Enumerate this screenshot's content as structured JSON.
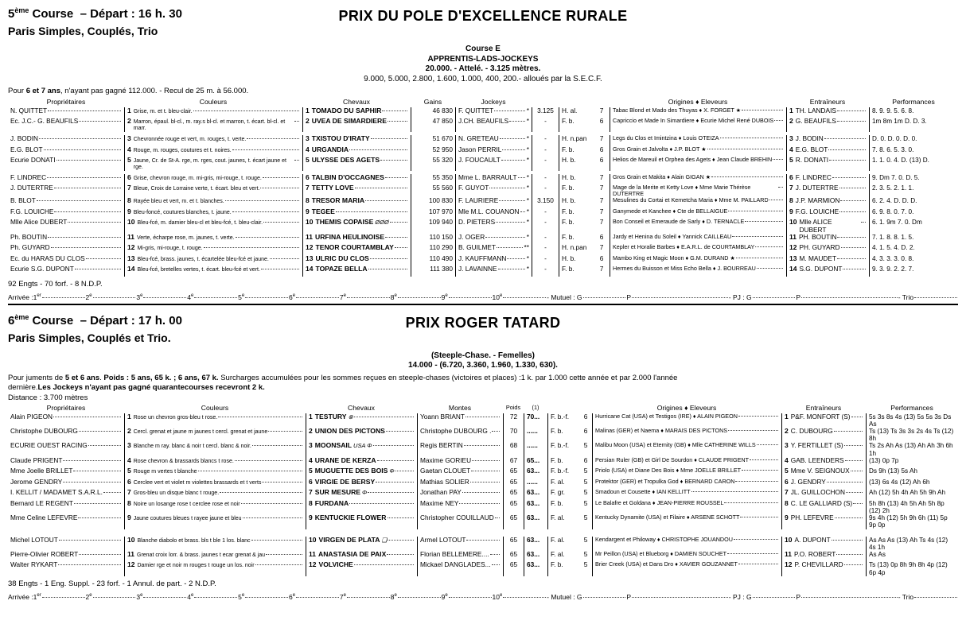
{
  "shared": {
    "arrivee": {
      "label": "Arrivée :",
      "positions": [
        {
          "num": "1",
          "suffix": "er"
        },
        {
          "num": "2",
          "suffix": "e"
        },
        {
          "num": "3",
          "suffix": "e"
        },
        {
          "num": "4",
          "suffix": "e"
        },
        {
          "num": "5",
          "suffix": "e"
        },
        {
          "num": "6",
          "suffix": "e"
        },
        {
          "num": "7",
          "suffix": "e"
        },
        {
          "num": "8",
          "suffix": "e"
        },
        {
          "num": "9",
          "suffix": "e"
        },
        {
          "num": "10",
          "suffix": "e"
        }
      ],
      "mutuel_label": "- Mutuel : G",
      "place_label": "P",
      "pj_label": "- PJ : G",
      "place2_label": "P",
      "trio_label": "- Trio"
    }
  },
  "races": [
    {
      "num": "5",
      "num_sup": "ème",
      "course_word": "Course",
      "depart": "– Départ : 16 h. 30",
      "bets": "Paris Simples, Couplés, Trio",
      "title": "PRIX DU POLE D'EXCELLENCE RURALE",
      "sublines": [
        {
          "t": "Course E",
          "b": 1
        },
        {
          "t": "APPRENTIS-LADS-JOCKEYS",
          "b": 1
        },
        {
          "t": "20.000. - Attelé. - 3.125 mètres.",
          "b": 1
        },
        {
          "t": "9.000, 5.000, 2.800, 1.600, 1.000, 400, 200.- alloués par la S.E.C.F.",
          "b": 0
        }
      ],
      "conditions": [
        [
          {
            "t": "Pour ",
            "b": 0
          },
          {
            "t": "6 et 7 ans",
            "b": 1
          },
          {
            "t": ", n'ayant pas gagné 112.000. - Recul de 25 m. à 56.000.",
            "b": 0
          }
        ]
      ],
      "distance_line": "",
      "headers": [
        "Propriétaires",
        "Couleurs",
        "Chevaux",
        "Gains",
        "Jockeys",
        "",
        "",
        "",
        "Origines ♦ Eleveurs",
        "Entraîneurs",
        "Performances"
      ],
      "rows": [
        {
          "num": "1",
          "owner": "N. QUITTET",
          "colors": "Grise, m. et t. bleu-clair.",
          "horse": "TOMADO DU SAPHIR",
          "mark": "",
          "gains": "46 830",
          "jockey": "F. QUITTET",
          "jmark": "*",
          "dist": "3.125",
          "sex": "H. al.",
          "age": "7",
          "origins": "Tabac Blond et Mado des Thuyas ♦ X. FORGET ★",
          "trainer": "TH. LANDAIS",
          "perf": "8. 9. 9. 5. 6. 8."
        },
        {
          "num": "2",
          "owner": "Ec. J.C.- G. BEAUFILS",
          "colors": "Marron, épaul. bl-cl., m. ray.s bl-cl. et marron, t. écart. bl-cl. et marr.",
          "horse": "UVEA DE SIMARDIERE",
          "mark": "",
          "gains": "47 850",
          "jockey": "J.CH. BEAUFILS",
          "jmark": "*",
          "dist": "-",
          "sex": "F. b.",
          "age": "6",
          "origins": "Capriccio et Made In Simardiere ♦ Ecurie Michel René DUBOIS",
          "trainer": "G. BEAUFILS",
          "perf": "1m 8m 1m D. D. 3."
        },
        {
          "num": "3",
          "gap": true,
          "owner": "J. BODIN",
          "colors": "Chevronnée rouge et vert, m. rouges, t. verte.",
          "horse": "TXISTOU D'IRATY",
          "mark": "",
          "gains": "51 670",
          "jockey": "N. GRETEAU",
          "jmark": "*",
          "dist": "-",
          "sex": "H. n.pan",
          "age": "7",
          "origins": "Legs du Clos et Imintzina ♦ Louis OTEIZA",
          "trainer": "J. BODIN",
          "perf": "D. 0. D. 0. D. 0."
        },
        {
          "num": "4",
          "owner": "E.G. BLOT",
          "colors": "Rouge, m. rouges, coutures et t. noires.",
          "horse": "URGANDIA",
          "mark": "",
          "gains": "52 950",
          "jockey": "Jason PERRIL",
          "jmark": "*",
          "dist": "-",
          "sex": "F. b.",
          "age": "6",
          "origins": "Gros Grain et Jalvolta ♦ J.P. BLOT ★",
          "trainer": "E.G. BLOT",
          "perf": "7. 8. 6. 5. 3. 0."
        },
        {
          "num": "5",
          "owner": "Ecurie DONATI",
          "colors": "Jaune, Cr. de St-A. rge, m. rges, cout. jaunes, t. écart jaune et rge.",
          "horse": "ULYSSE DES AGETS",
          "mark": "",
          "gains": "55 320",
          "jockey": "J. FOUCAULT",
          "jmark": "*",
          "dist": "-",
          "sex": "H. b.",
          "age": "6",
          "origins": "Helios de Mareuil et Orphea des Agets ♦ Jean Claude BREHIN",
          "trainer": "R. DONATI",
          "perf": "1. 1. 0. 4. D. (13) D."
        },
        {
          "num": "6",
          "gap": true,
          "owner": "F. LINDREC",
          "colors": "Grise, chevron rouge, m. mi-gris, mi-rouge, t. rouge.",
          "horse": "TALBIN D'OCCAGNES",
          "mark": "",
          "gains": "55 350",
          "jockey": "Mme L. BARRAULT",
          "jmark": "*",
          "dist": "-",
          "sex": "H. b.",
          "age": "7",
          "origins": "Gros Grain et Makita ♦ Alain GIGAN ★",
          "trainer": "F. LINDREC",
          "perf": "9. Dm 7. 0. D. 5."
        },
        {
          "num": "7",
          "owner": "J. DUTERTRE",
          "colors": "Bleue, Croix de Lorraine verte, t. écart. bleu et vert.",
          "horse": "TETTY LOVE",
          "mark": "",
          "gains": "55 560",
          "jockey": "F. GUYOT",
          "jmark": "*",
          "dist": "-",
          "sex": "F. b.",
          "age": "7",
          "origins": "Mage de la Merite et Ketty Love ♦ Mme Marie Thérèse DUTERTRE",
          "trainer": "J. DUTERTRE",
          "perf": "2. 3. 5. 2. 1. 1."
        },
        {
          "num": "8",
          "owner": "B. BLOT",
          "colors": "Rayée bleu et vert, m. et t. blanches.",
          "horse": "TRESOR MARIA",
          "mark": "",
          "gains": "100 830",
          "jockey": "F. LAURIERE",
          "jmark": "*",
          "dist": "3.150",
          "sex": "H. b.",
          "age": "7",
          "origins": "Mesulines du Cortai et Kemetcha Maria ♦ Mme M. PAILLARD",
          "trainer": "J.P. MARMION",
          "perf": "6. 2. 4. D. D. D."
        },
        {
          "num": "9",
          "owner": "F.G. LOUICHE",
          "colors": "Bleu-foncé, coutures blanches, t. jaune.",
          "horse": "TEGEE",
          "mark": "",
          "gains": "107 970",
          "jockey": "Mle M.L. COUANON",
          "jmark": "*",
          "dist": "-",
          "sex": "F. b.",
          "age": "7",
          "origins": "Ganymede et Kanchee ♦ Cte de BELLAIGUE",
          "trainer": "F.G. LOUICHE",
          "perf": "6. 9. 8. 0. 7. 0."
        },
        {
          "num": "10",
          "owner": "Mlle Alice DUBERT",
          "colors": "Bleu-fcé, m. damier bleu-cl et bleu-fcé, t. bleu-clair.",
          "horse": "THEMIS COPAISE",
          "mark": "ØØØ",
          "gains": "109 940",
          "jockey": "D. PIETERS",
          "jmark": "*",
          "dist": "-",
          "sex": "F. b.",
          "age": "7",
          "origins": "Bon Conseil et Emeraude de Sarly ♦ D. TERNACLE",
          "trainer": "Mlle ALICE DUBERT",
          "perf": "6. 1. 9m 7. 0. Dm"
        },
        {
          "num": "11",
          "owner": "Ph. BOUTIN",
          "colors": "Verte, écharpe rose, m. jaunes, t. verte.",
          "horse": "URFINA HEULINOISE",
          "mark": "",
          "gains": "110 150",
          "jockey": "J. OGER",
          "jmark": "*",
          "dist": "-",
          "sex": "F. b.",
          "age": "6",
          "origins": "Jardy et Henina du Soleil ♦ Yannick CAILLEAU",
          "trainer": "PH. BOUTIN",
          "perf": "7. 1. 8. 8. 1. 5."
        },
        {
          "num": "12",
          "owner": "Ph. GUYARD",
          "colors": "Mi-gris, mi-rouge, t. rouge.",
          "horse": "TENOR COURTAMBLAY",
          "mark": "",
          "gains": "110 290",
          "jockey": "B. GUILMET",
          "jmark": "**",
          "dist": "-",
          "sex": "H. n.pan",
          "age": "7",
          "origins": "Kepler et Horalie Barbes ♦ E.A.R.L. de COURTAMBLAY",
          "trainer": "PH. GUYARD",
          "perf": "4. 1. 5. 4. D. 2."
        },
        {
          "num": "13",
          "owner": "Ec. du HARAS DU CLOS",
          "colors": "Bleu-fcé, brass. jaunes, t. écartelée bleu-fcé et jaune.",
          "horse": "ULRIC DU CLOS",
          "mark": "",
          "gains": "110 490",
          "jockey": "J. KAUFFMANN",
          "jmark": "*",
          "dist": "-",
          "sex": "H. b.",
          "age": "6",
          "origins": "Mambo King et Magic Moon ♦ G.M. DURAND ★",
          "trainer": "M. MAUDET",
          "perf": "4. 3. 3. 3. 0. 8."
        },
        {
          "num": "14",
          "owner": "Ecurie S.G. DUPONT",
          "colors": "Bleu-fcé, bretelles vertes, t. écart. bleu-fcé et vert.",
          "horse": "TOPAZE BELLA",
          "mark": "",
          "gains": "111 380",
          "jockey": "J. LAVAINNE",
          "jmark": "*",
          "dist": "-",
          "sex": "F. b.",
          "age": "7",
          "origins": "Hermes du Buisson et Miss Echo Bella ♦ J. BOURREAU",
          "trainer": "S.G. DUPONT",
          "perf": "9. 3. 9. 2. 2. 7."
        }
      ],
      "footer": "92 Engts - 70 forf. - 8 N.D.P."
    },
    {
      "num": "6",
      "num_sup": "ème",
      "course_word": "Course",
      "depart": "– Départ : 17 h. 00",
      "bets": "Paris Simples, Couplés et Trio.",
      "title": "PRIX ROGER TATARD",
      "sublines": [
        {
          "t": "(Steeple-Chase. - Femelles)",
          "b": 1
        },
        {
          "t": "14.000 - (6.720, 3.360, 1.960, 1.330, 630).",
          "b": 1
        }
      ],
      "conditions": [
        [
          {
            "t": "Pour juments de ",
            "b": 0
          },
          {
            "t": "5 et 6 ans",
            "b": 1
          },
          {
            "t": ". ",
            "b": 0
          },
          {
            "t": "Poids : 5 ans, 65 k. ; 6 ans, 67 k.",
            "b": 1
          },
          {
            "t": " Surcharges accumulées pour les sommes reçues en steeple-chases (victoires et places) :1 k. par 1.000 cette année et par 2.000 l'année",
            "b": 0
          }
        ],
        [
          {
            "t": "dernière.",
            "b": 0
          },
          {
            "t": "Les Jockeys n'ayant pas gagné quarantecourses recevront 2 k.",
            "b": 1
          }
        ]
      ],
      "distance_line": "Distance : 3.700 mètres",
      "headers": [
        "Propriétaires",
        "Couleurs",
        "Chevaux",
        "Montes",
        "Poids",
        "(1)",
        "",
        "",
        "Origines ♦ Eleveurs",
        "Entraîneurs",
        "Performances"
      ],
      "rows": [
        {
          "num": "1",
          "owner": "Alain PIGEON",
          "colors": "Rose un chevron gros-bleu t rose.",
          "horse": "TESTURY",
          "mark": "⊗",
          "monte": "Yoann BRIANT",
          "poids": "72",
          "poids2": "70...",
          "sex": "F. b.-f.",
          "age": "6",
          "origins": "Hurricane Cat (USA) et Testigos (IRE) ♦ ALAIN PIGEON",
          "trainer": "P&F. MONFORT (S)",
          "perf": "5s 3s 8s 4s (13) 5s 5s 3s Ds As"
        },
        {
          "num": "2",
          "owner": "Christophe DUBOURG",
          "colors": "Cercl. grenat et jaune m jaunes t cercl. grenat et jaune",
          "horse": "UNION DES PICTONS",
          "mark": "",
          "monte": "Christophe DUBOURG .",
          "poids": "70",
          "poids2": "......",
          "sex": "F. b.",
          "age": "6",
          "origins": "Malinas (GER) et Naema ♦ MARAIS DES PICTONS",
          "trainer": "C. DUBOURG",
          "perf": "Ts (13) Ts 3s 3s 2s 4s Ts (12) 8h"
        },
        {
          "num": "3",
          "owner": "ECURIE OUEST RACING",
          "colors": "Blanche m ray. blanc & noir t cercl. blanc & noir.",
          "horse": "MOONSAIL",
          "mark": "USA Φ",
          "monte": "Regis BERTIN",
          "poids": "68",
          "poids2": "......",
          "sex": "F. b.-f.",
          "age": "5",
          "origins": "Malibu Moon (USA) et Eternity (GB) ♦ Mlle CATHERINE WILLS",
          "trainer": "Y. FERTILLET (S)",
          "perf": "Ts 2s Ah As (13) Ah Ah 3h 6h 1h"
        },
        {
          "num": "4",
          "owner": "Claude PRIGENT",
          "colors": "Rose chevron & brassards blancs t rose.",
          "horse": "URANE DE KERZA",
          "mark": "",
          "monte": "Maxime GORIEU",
          "poids": "67",
          "poids2": "65...",
          "sex": "F. b.",
          "age": "6",
          "origins": "Persian Ruler (GB) et Girl De Sourdon ♦ CLAUDE PRIGENT",
          "trainer": "GAB. LEENDERS",
          "perf": "(13) 0p 7p"
        },
        {
          "num": "5",
          "owner": "Mme Joelle BRILLET",
          "colors": "Rouge m vertes t blanche",
          "horse": "MUGUETTE DES BOIS",
          "mark": "Φ",
          "monte": "Gaetan CLOUET",
          "poids": "65",
          "poids2": "63...",
          "sex": "F. b.-f.",
          "age": "5",
          "origins": "Priolo (USA) et Diane Des Bois ♦ Mme JOELLE BRILLET",
          "trainer": "Mme V. SEIGNOUX",
          "perf": "Ds 9h (13) 5s Ah"
        },
        {
          "num": "6",
          "owner": "Jerome GENDRY",
          "colors": "Cerclee vert et violet m violettes brassards et t verts",
          "horse": "VIRGIE DE BERSY",
          "mark": "",
          "monte": "Mathias SOLIER",
          "poids": "65",
          "poids2": "......",
          "sex": "F. al.",
          "age": "5",
          "origins": "Protektor (GER) et Tropulka God ♦ BERNARD CARON",
          "trainer": "J. GENDRY",
          "perf": "(13) 6s 4s (12) Ah 6h"
        },
        {
          "num": "7",
          "owner": "I. KELLIT / MADAMET S.A.R.L.",
          "colors": "Gros-bleu un disque blanc t rouge.",
          "horse": "SUR MESURE",
          "mark": "Φ",
          "monte": "Jonathan PAY",
          "poids": "65",
          "poids2": "63...",
          "sex": "F. gr.",
          "age": "5",
          "origins": "Smadoun et Cousette ♦ IAN KELLITT",
          "trainer": "JL. GUILLOCHON",
          "perf": "Ah (12) 5h 4h Ah 5h 9h Ah"
        },
        {
          "num": "8",
          "owner": "Bernard LE REGENT",
          "colors": "Noire un losange rose t cerclee rose et noir",
          "horse": "FURDANA",
          "mark": "",
          "monte": "Maxime NEY",
          "poids": "65",
          "poids2": "63...",
          "sex": "F. b.",
          "age": "5",
          "origins": "Le Balafre et Goldana ♦ JEAN-PIERRE ROUSSEL",
          "trainer": "C. LE GALLIARD (S)",
          "perf": "5h 8h (13) 4h 5h Ah 5h 8p (12) 2h"
        },
        {
          "num": "9",
          "owner": "Mme Celine LEFEVRE",
          "colors": "Jaune coutures bleues t rayee jaune et bleu",
          "horse": "KENTUCKIE FLOWER",
          "mark": "",
          "monte": "Christopher COUILLAUD",
          "poids": "65",
          "poids2": "63...",
          "sex": "F. al.",
          "age": "5",
          "origins": "Kentucky Dynamite (USA) et Filaire ♦ ARSENE SCHOTT",
          "trainer": "PH. LEFEVRE",
          "perf": "9s 4h (12) 5h 9h 6h (11) 5p 9p 0p"
        },
        {
          "num": "10",
          "gap": true,
          "owner": "Michel LOTOUT",
          "colors": "Blanche diabolo et brass. bls t ble 1 los. blanc",
          "horse": "VIRGEN DE PLATA",
          "mark": "❑",
          "monte": "Armel LOTOUT",
          "poids": "65",
          "poids2": "63...",
          "sex": "F. al.",
          "age": "5",
          "origins": "Kendargent et Philoway ♦ CHRISTOPHE JOUANDOU",
          "trainer": "A. DUPONT",
          "perf": "As As As (13) Ah Ts 4s (12) 4s 1h"
        },
        {
          "num": "11",
          "owner": "Pierre-Olivier ROBERT",
          "colors": "Grenat croix lorr. & brass. jaunes t ecar grenat & jau",
          "horse": "ANASTASIA DE PAIX",
          "mark": "",
          "monte": "Florian BELLEMERE....",
          "poids": "65",
          "poids2": "63...",
          "sex": "F. al.",
          "age": "5",
          "origins": "Mr Peillon (USA) et Blueborg ♦ DAMIEN SOUCHET",
          "trainer": "P.O. ROBERT",
          "perf": "As As"
        },
        {
          "num": "12",
          "owner": "Walter RYKART",
          "colors": "Damier rge et noir m rouges t rouge un los. noir",
          "horse": "VOLVICHE",
          "mark": "",
          "monte": "Mickael DANGLADES...",
          "poids": "65",
          "poids2": "63...",
          "sex": "F. b.",
          "age": "5",
          "origins": "Brier Creek (USA) et Dans Dro ♦ XAVIER GOUZANNET",
          "trainer": "P. CHEVILLARD",
          "perf": "Ts (13) 0p 8h 9h 8h 4p (12) 6p 4p"
        }
      ],
      "footer": "38 Engts - 1 Eng. Suppl. - 23 forf. - 1 Annul. de part. - 2 N.D.P."
    }
  ]
}
